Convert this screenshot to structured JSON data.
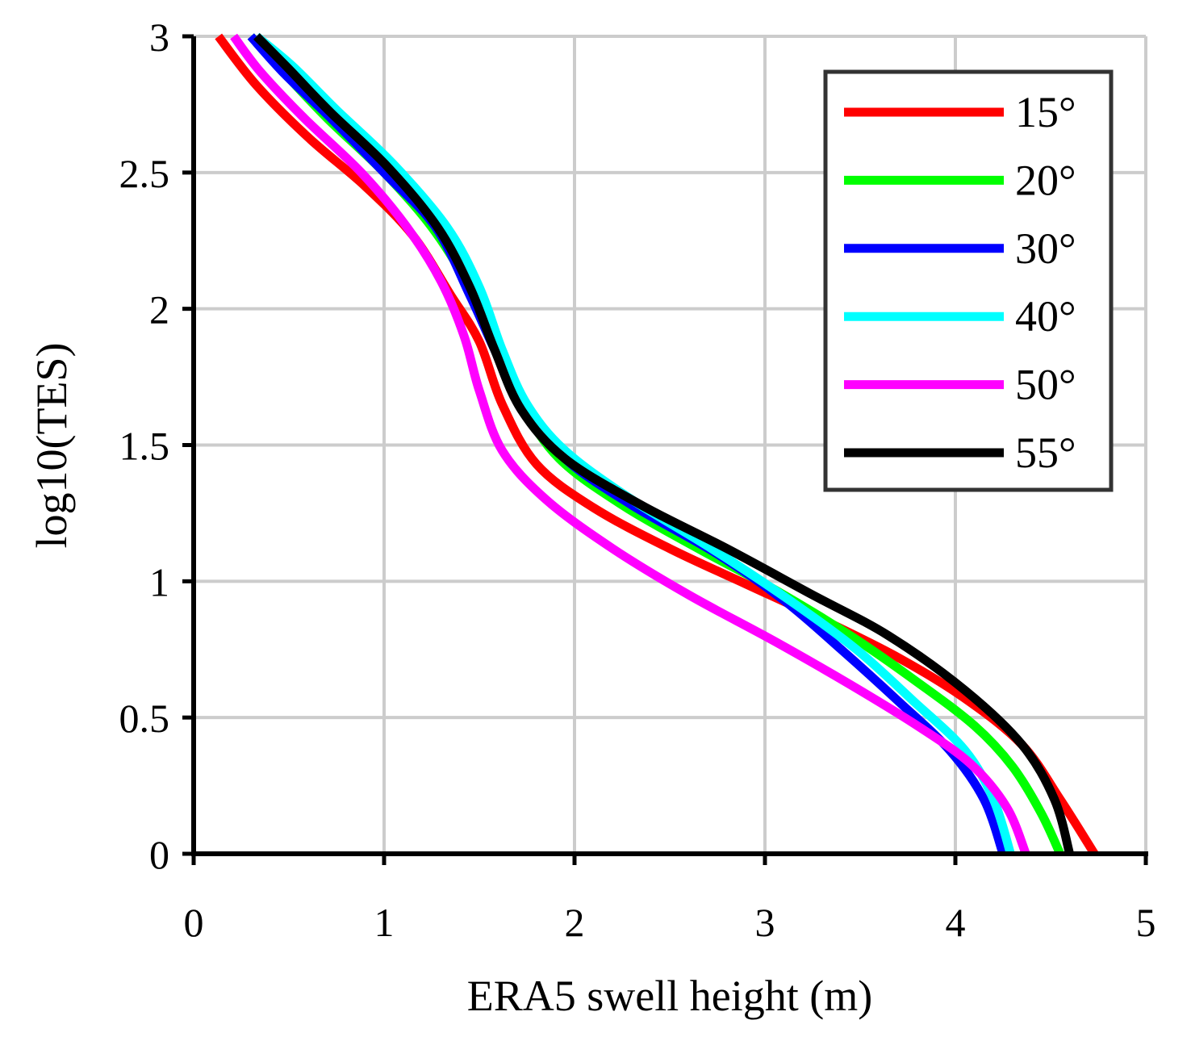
{
  "chart_data": {
    "type": "line",
    "title": "",
    "xlabel": "ERA5 swell height (m)",
    "ylabel": "log10(TES)",
    "xlim": [
      0,
      5
    ],
    "ylim": [
      0,
      3
    ],
    "x_ticks": [
      0,
      1,
      2,
      3,
      4,
      5
    ],
    "x_tick_labels": [
      "0",
      "1",
      "2",
      "3",
      "4",
      "5"
    ],
    "y_ticks": [
      0,
      0.5,
      1,
      1.5,
      2,
      2.5,
      3
    ],
    "y_tick_labels": [
      "0",
      "0.5",
      "1",
      "1.5",
      "2",
      "2.5",
      "3"
    ],
    "grid": true,
    "legend_position": "top-right",
    "series": [
      {
        "name": "15°",
        "color": "#ff0000",
        "points": [
          [
            4.73,
            0
          ],
          [
            4.55,
            0.2
          ],
          [
            4.35,
            0.4
          ],
          [
            4.05,
            0.57
          ],
          [
            3.7,
            0.72
          ],
          [
            3.3,
            0.86
          ],
          [
            2.9,
            0.99
          ],
          [
            2.5,
            1.12
          ],
          [
            2.1,
            1.27
          ],
          [
            1.8,
            1.43
          ],
          [
            1.62,
            1.65
          ],
          [
            1.5,
            1.88
          ],
          [
            1.35,
            2.05
          ],
          [
            1.15,
            2.27
          ],
          [
            0.9,
            2.45
          ],
          [
            0.6,
            2.63
          ],
          [
            0.33,
            2.82
          ],
          [
            0.13,
            3.0
          ]
        ]
      },
      {
        "name": "20°",
        "color": "#00ff00",
        "points": [
          [
            4.55,
            0
          ],
          [
            4.45,
            0.15
          ],
          [
            4.3,
            0.32
          ],
          [
            4.1,
            0.47
          ],
          [
            3.8,
            0.63
          ],
          [
            3.45,
            0.8
          ],
          [
            3.05,
            0.97
          ],
          [
            2.65,
            1.12
          ],
          [
            2.25,
            1.28
          ],
          [
            1.92,
            1.45
          ],
          [
            1.72,
            1.65
          ],
          [
            1.57,
            1.88
          ],
          [
            1.43,
            2.1
          ],
          [
            1.25,
            2.3
          ],
          [
            1.0,
            2.5
          ],
          [
            0.7,
            2.7
          ],
          [
            0.47,
            2.87
          ],
          [
            0.3,
            3.0
          ]
        ]
      },
      {
        "name": "30°",
        "color": "#0000ff",
        "points": [
          [
            4.25,
            0
          ],
          [
            4.15,
            0.2
          ],
          [
            3.97,
            0.38
          ],
          [
            3.7,
            0.56
          ],
          [
            3.4,
            0.75
          ],
          [
            3.1,
            0.93
          ],
          [
            2.75,
            1.1
          ],
          [
            2.3,
            1.28
          ],
          [
            1.95,
            1.45
          ],
          [
            1.72,
            1.65
          ],
          [
            1.58,
            1.85
          ],
          [
            1.45,
            2.05
          ],
          [
            1.27,
            2.3
          ],
          [
            1.0,
            2.5
          ],
          [
            0.72,
            2.7
          ],
          [
            0.48,
            2.86
          ],
          [
            0.3,
            3.0
          ]
        ]
      },
      {
        "name": "40°",
        "color": "#00ffff",
        "points": [
          [
            4.29,
            0
          ],
          [
            4.2,
            0.2
          ],
          [
            4.05,
            0.38
          ],
          [
            3.78,
            0.56
          ],
          [
            3.48,
            0.75
          ],
          [
            3.13,
            0.93
          ],
          [
            2.72,
            1.12
          ],
          [
            2.3,
            1.3
          ],
          [
            1.95,
            1.48
          ],
          [
            1.75,
            1.65
          ],
          [
            1.62,
            1.85
          ],
          [
            1.5,
            2.08
          ],
          [
            1.33,
            2.3
          ],
          [
            1.05,
            2.53
          ],
          [
            0.75,
            2.73
          ],
          [
            0.52,
            2.89
          ],
          [
            0.33,
            3.0
          ]
        ]
      },
      {
        "name": "50°",
        "color": "#ff00ff",
        "points": [
          [
            4.37,
            0
          ],
          [
            4.27,
            0.17
          ],
          [
            4.08,
            0.33
          ],
          [
            3.8,
            0.47
          ],
          [
            3.45,
            0.62
          ],
          [
            3.05,
            0.78
          ],
          [
            2.6,
            0.95
          ],
          [
            2.2,
            1.12
          ],
          [
            1.85,
            1.3
          ],
          [
            1.62,
            1.48
          ],
          [
            1.5,
            1.7
          ],
          [
            1.42,
            1.9
          ],
          [
            1.3,
            2.1
          ],
          [
            1.12,
            2.3
          ],
          [
            0.88,
            2.5
          ],
          [
            0.58,
            2.7
          ],
          [
            0.35,
            2.87
          ],
          [
            0.21,
            3.0
          ]
        ]
      },
      {
        "name": "55°",
        "color": "#000000",
        "points": [
          [
            4.6,
            0
          ],
          [
            4.52,
            0.2
          ],
          [
            4.35,
            0.4
          ],
          [
            4.05,
            0.6
          ],
          [
            3.65,
            0.8
          ],
          [
            3.25,
            0.95
          ],
          [
            2.8,
            1.12
          ],
          [
            2.35,
            1.28
          ],
          [
            1.95,
            1.45
          ],
          [
            1.72,
            1.63
          ],
          [
            1.58,
            1.85
          ],
          [
            1.45,
            2.08
          ],
          [
            1.28,
            2.3
          ],
          [
            1.02,
            2.52
          ],
          [
            0.72,
            2.72
          ],
          [
            0.5,
            2.88
          ],
          [
            0.33,
            3.0
          ]
        ]
      }
    ]
  }
}
